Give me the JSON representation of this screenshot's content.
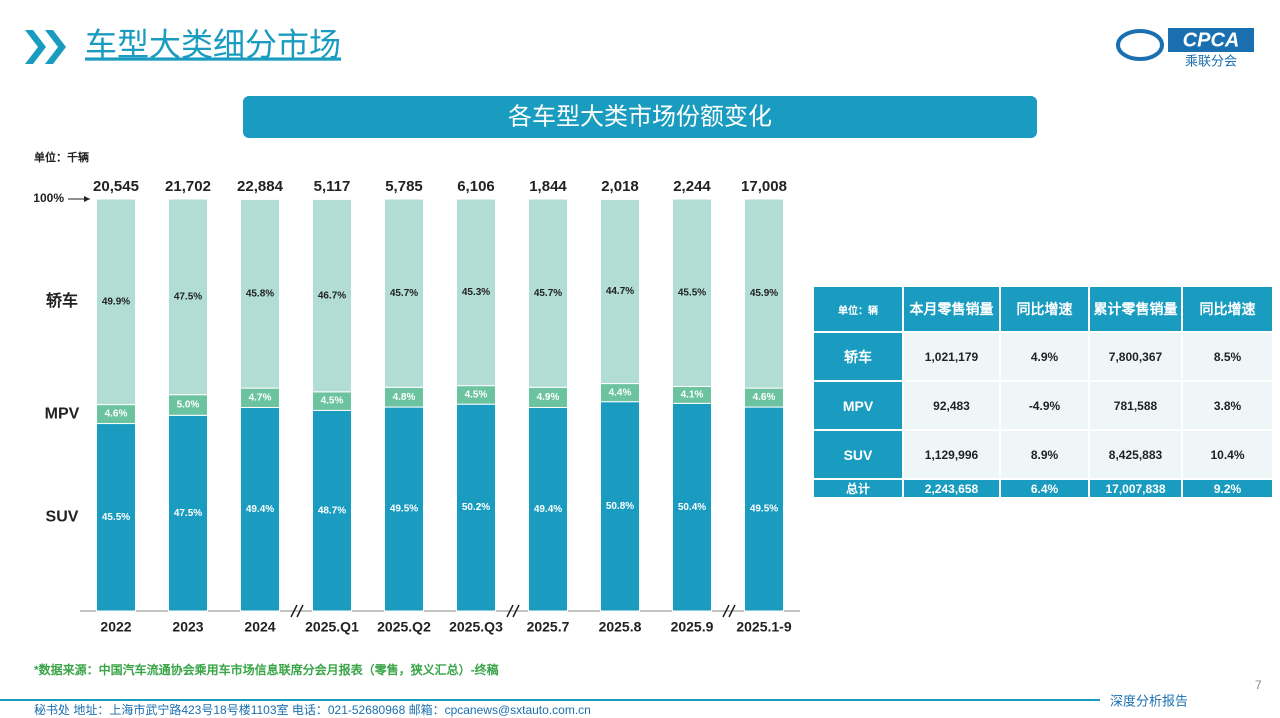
{
  "header": {
    "title": "车型大类细分市场",
    "logo_text": "CPCA",
    "logo_subtext": "乘联分会"
  },
  "chart_data": {
    "type": "stacked_bar",
    "title": "各车型大类市场份额变化",
    "unit": "单位：千辆",
    "categories": [
      "2022",
      "2023",
      "2024",
      "2025.Q1",
      "2025.Q2",
      "2025.Q3",
      "2025.7",
      "2025.8",
      "2025.9",
      "2025.1-9"
    ],
    "series": [
      {
        "name": "SUV",
        "color": "#1a9cc0",
        "values": [
          45.5,
          47.5,
          49.4,
          48.7,
          49.5,
          50.2,
          49.4,
          50.8,
          50.4,
          49.5
        ],
        "value_labels": [
          "45.5%",
          "47.5%",
          "49.4%",
          "48.7%",
          "49.5%",
          "50.2%",
          "49.4%",
          "50.8%",
          "50.4%",
          "49.5%"
        ]
      },
      {
        "name": "MPV",
        "color": "#6cc3a0",
        "values": [
          4.6,
          5.0,
          4.7,
          4.5,
          4.8,
          4.5,
          4.9,
          4.4,
          4.1,
          4.6
        ],
        "value_labels": [
          "4.6%",
          "5.0%",
          "4.7%",
          "4.5%",
          "4.8%",
          "4.5%",
          "4.9%",
          "4.4%",
          "4.1%",
          "4.6%"
        ]
      },
      {
        "name": "轿车",
        "color": "#b2ddd5",
        "values": [
          49.9,
          47.5,
          45.8,
          46.7,
          45.7,
          45.3,
          45.7,
          44.7,
          45.5,
          45.9
        ],
        "value_labels": [
          "49.9%",
          "47.5%",
          "45.8%",
          "46.7%",
          "45.7%",
          "45.3%",
          "45.7%",
          "44.7%",
          "45.5%",
          "45.9%"
        ]
      }
    ],
    "totals": {
      "values": [
        20545,
        21702,
        22884,
        5117,
        5785,
        6106,
        1844,
        2018,
        2244,
        17008
      ],
      "value_labels": [
        "20,545",
        "21,702",
        "22,884",
        "5,117",
        "5,785",
        "6,106",
        "1,844",
        "2,018",
        "2,244",
        "17,008"
      ]
    },
    "ylim": [
      0,
      100
    ],
    "yticks": [
      {
        "value": 100,
        "label": "100%"
      }
    ]
  },
  "table": {
    "header": [
      "单位：辆",
      "本月零售销量",
      "同比增速",
      "累计零售销量",
      "同比增速"
    ],
    "rows": [
      [
        "轿车",
        "1,021,179",
        "4.9%",
        "7,800,367",
        "8.5%"
      ],
      [
        "MPV",
        "92,483",
        "-4.9%",
        "781,588",
        "3.8%"
      ],
      [
        "SUV",
        "1,129,996",
        "8.9%",
        "8,425,883",
        "10.4%"
      ],
      [
        "总计",
        "2,243,658",
        "6.4%",
        "17,007,838",
        "9.2%"
      ]
    ]
  },
  "source": "*数据来源：中国汽车流通协会乘用车市场信息联席分会月报表（零售，狭义汇总）-终稿",
  "footer": {
    "address": "秘书处   地址：上海市武宁路423号18号楼1103室  电话：021-52680968   邮箱：cpcanews@sxtauto.com.cn",
    "report": "深度分析报告",
    "page": "7"
  }
}
